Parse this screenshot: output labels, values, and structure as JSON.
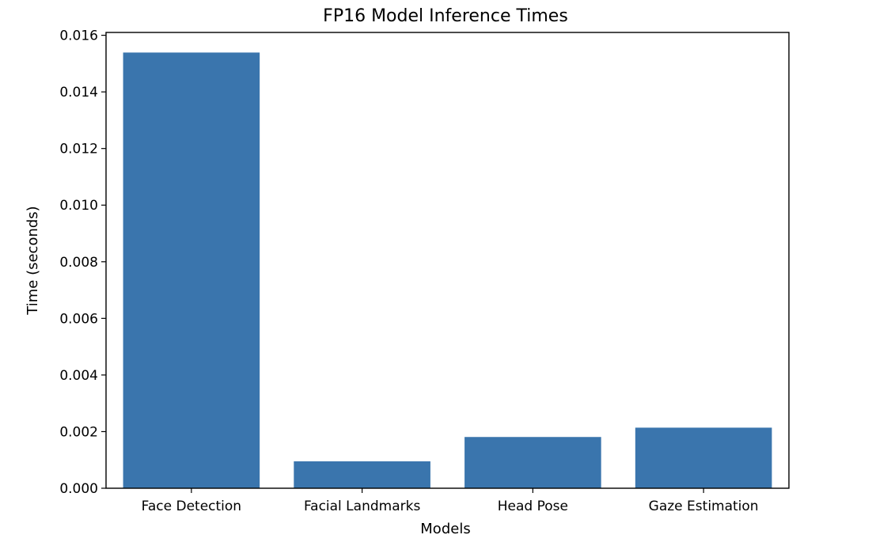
{
  "chart_data": {
    "type": "bar",
    "title": "FP16 Model Inference Times",
    "xlabel": "Models",
    "ylabel": "Time (seconds)",
    "categories": [
      "Face Detection",
      "Facial Landmarks",
      "Head Pose",
      "Gaze Estimation"
    ],
    "values": [
      0.01539,
      0.00095,
      0.00181,
      0.00214
    ],
    "ylim": [
      0,
      0.0161
    ],
    "yticks": [
      0.0,
      0.002,
      0.004,
      0.006,
      0.008,
      0.01,
      0.012,
      0.014,
      0.016
    ],
    "ytick_labels": [
      "0.000",
      "0.002",
      "0.004",
      "0.006",
      "0.008",
      "0.010",
      "0.012",
      "0.014",
      "0.016"
    ],
    "grid": false,
    "bar_color": "#3a75ad"
  }
}
